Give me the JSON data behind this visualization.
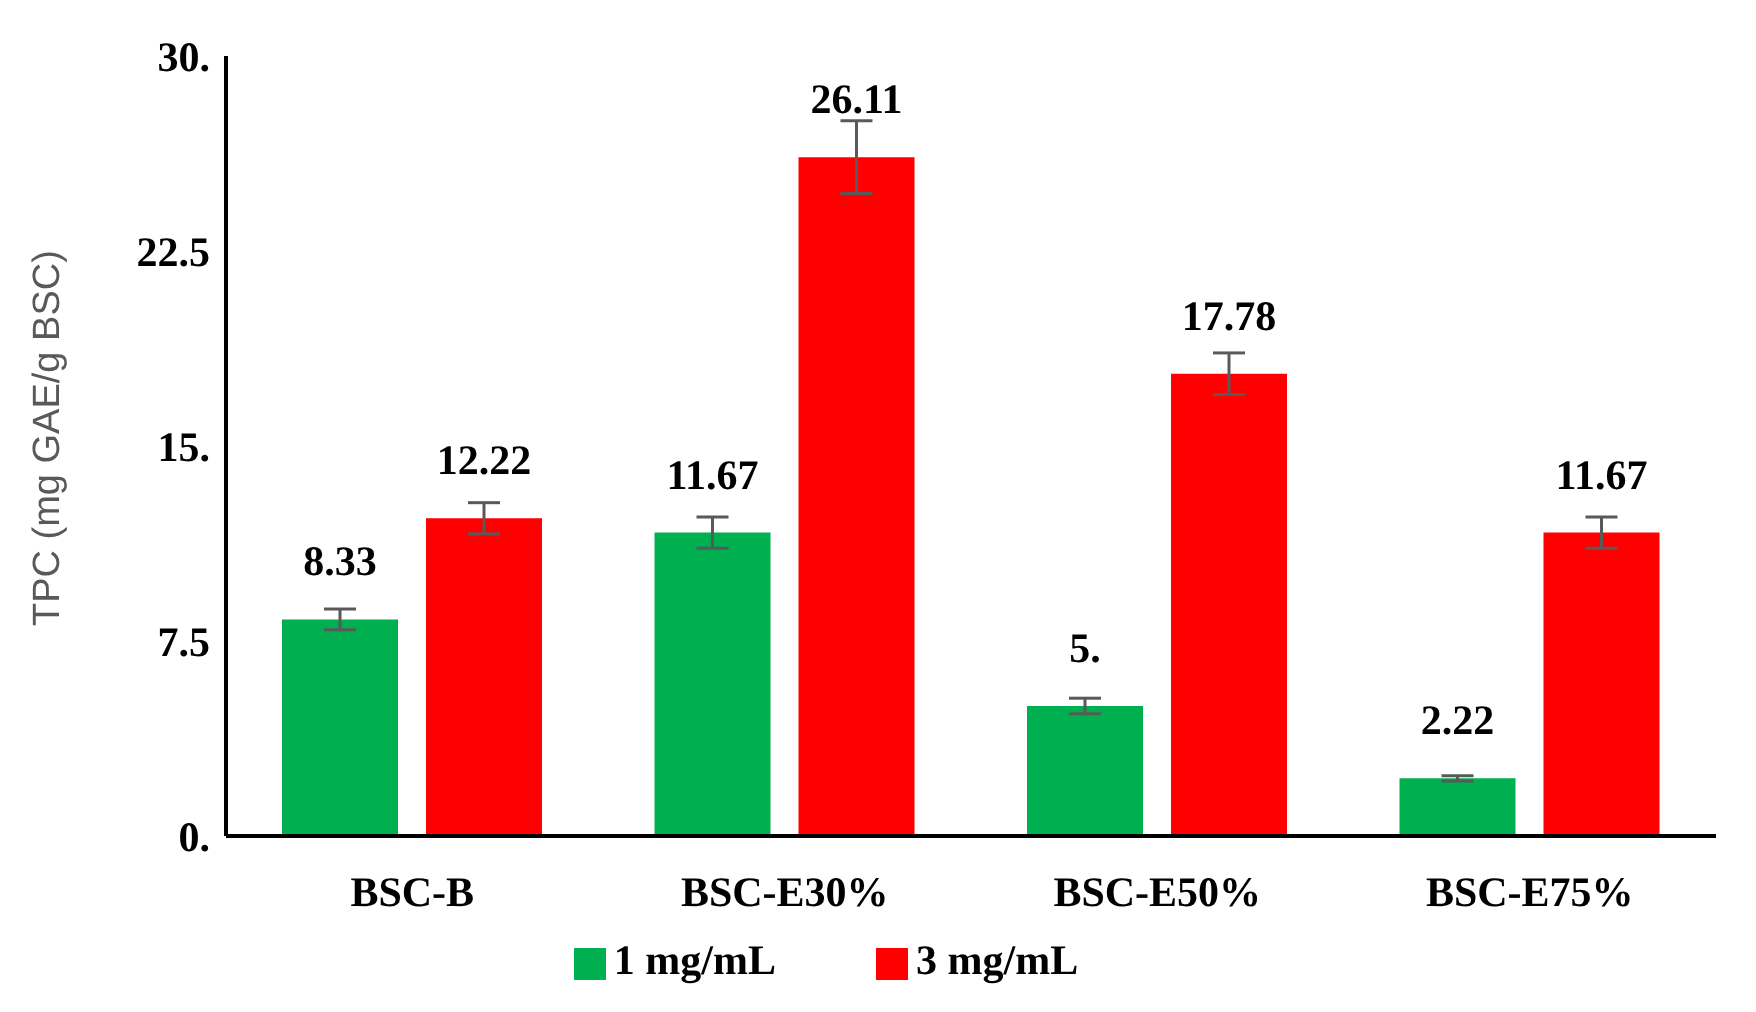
{
  "chart_data": {
    "type": "bar",
    "ylabel": "TPC (mg GAE/g BSC)",
    "categories": [
      "BSC-B",
      "BSC-E30%",
      "BSC-E50%",
      "BSC-E75%"
    ],
    "series": [
      {
        "name": "1 mg/mL",
        "color": "#00b050",
        "values": [
          8.33,
          11.67,
          5,
          2.22
        ],
        "errors": [
          0.4,
          0.6,
          0.3,
          0.1
        ],
        "value_labels": [
          "8.33",
          "11.67",
          "5.",
          "2.22"
        ]
      },
      {
        "name": "3 mg/mL",
        "color": "#ff0000",
        "values": [
          12.22,
          26.11,
          17.78,
          11.67
        ],
        "errors": [
          0.6,
          1.4,
          0.8,
          0.6
        ],
        "value_labels": [
          "12.22",
          "26.11",
          "17.78",
          "11.67"
        ]
      }
    ],
    "ylim": [
      0,
      30
    ],
    "yticks": [
      {
        "value": 0,
        "label": "0."
      },
      {
        "value": 7.5,
        "label": "7.5"
      },
      {
        "value": 15,
        "label": "15."
      },
      {
        "value": 22.5,
        "label": "22.5"
      },
      {
        "value": 30,
        "label": "30."
      }
    ],
    "grid": false,
    "legend": "bottom"
  }
}
